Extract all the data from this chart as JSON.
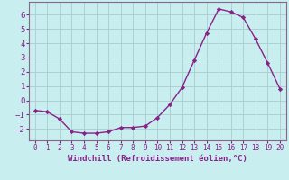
{
  "x": [
    0,
    1,
    2,
    3,
    4,
    5,
    6,
    7,
    8,
    9,
    10,
    11,
    12,
    13,
    14,
    15,
    16,
    17,
    18,
    19,
    20
  ],
  "y": [
    -0.7,
    -0.8,
    -1.3,
    -2.2,
    -2.3,
    -2.3,
    -2.2,
    -1.9,
    -1.9,
    -1.8,
    -1.2,
    -0.3,
    0.9,
    2.8,
    4.7,
    6.4,
    6.2,
    5.8,
    4.3,
    2.6,
    0.8
  ],
  "line_color": "#882288",
  "marker": "D",
  "marker_size": 2.2,
  "bg_color": "#c8eef0",
  "grid_color": "#aacccc",
  "xlabel": "Windchill (Refroidissement éolien,°C)",
  "xlabel_color": "#882288",
  "tick_color": "#882288",
  "spine_color": "#886688",
  "ylim": [
    -2.8,
    6.9
  ],
  "xlim": [
    -0.5,
    20.5
  ],
  "yticks": [
    -2,
    -1,
    0,
    1,
    2,
    3,
    4,
    5,
    6
  ],
  "xticks": [
    0,
    1,
    2,
    3,
    4,
    5,
    6,
    7,
    8,
    9,
    10,
    11,
    12,
    13,
    14,
    15,
    16,
    17,
    18,
    19,
    20
  ],
  "xlabel_fontsize": 6.5,
  "tick_fontsize_x": 5.5,
  "tick_fontsize_y": 6.5
}
